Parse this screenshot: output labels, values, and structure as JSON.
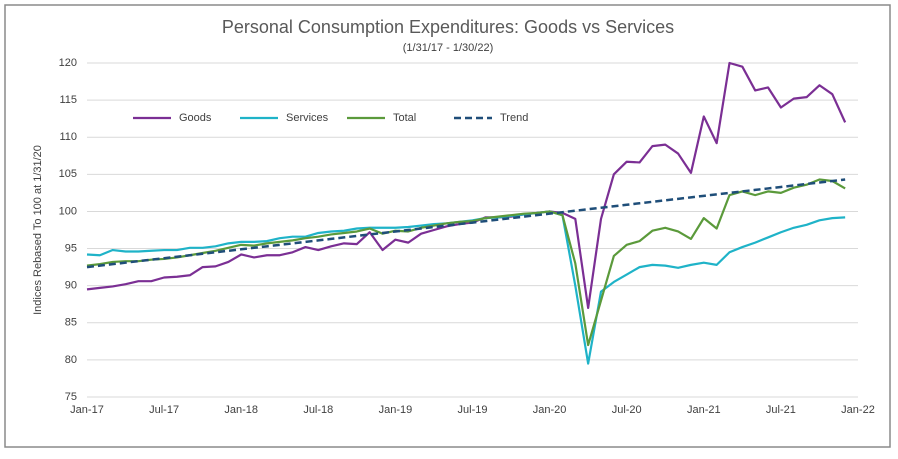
{
  "chart_data": {
    "type": "line",
    "title": "Personal Consumption Expenditures:  Goods vs Services",
    "subtitle": "(1/31/17 - 1/30/22)",
    "y_label": "Indices Rebased To 100 at 1/31/20",
    "categories": [
      "Jan-17",
      null,
      null,
      null,
      null,
      null,
      "Jul-17",
      null,
      null,
      null,
      null,
      null,
      "Jan-18",
      null,
      null,
      null,
      null,
      null,
      "Jul-18",
      null,
      null,
      null,
      null,
      null,
      "Jan-19",
      null,
      null,
      null,
      null,
      null,
      "Jul-19",
      null,
      null,
      null,
      null,
      null,
      "Jan-20",
      null,
      null,
      null,
      null,
      null,
      "Jul-20",
      null,
      null,
      null,
      null,
      null,
      "Jan-21",
      null,
      null,
      null,
      null,
      null,
      "Jul-21",
      null,
      null,
      null,
      null,
      null,
      "Jan-22"
    ],
    "series": [
      {
        "name": "Goods",
        "color": "#7b2f94",
        "values": [
          89.5,
          89.7,
          89.9,
          90.2,
          90.6,
          90.6,
          91.1,
          91.2,
          91.4,
          92.5,
          92.6,
          93.2,
          94.2,
          93.8,
          94.1,
          94.1,
          94.5,
          95.2,
          94.8,
          95.3,
          95.7,
          95.6,
          97.2,
          94.8,
          96.2,
          95.8,
          97.0,
          97.5,
          98.0,
          98.3,
          98.5,
          99.2,
          99.2,
          99.3,
          99.6,
          99.8,
          100,
          99.8,
          99.0,
          87,
          99,
          105,
          106.7,
          106.6,
          108.8,
          109,
          107.8,
          105.2,
          112.8,
          109.2,
          120,
          119.5,
          116.3,
          116.7,
          114,
          115.2,
          115.4,
          117,
          115.8,
          112,
          null
        ]
      },
      {
        "name": "Services",
        "color": "#1fb3c8",
        "values": [
          94.2,
          94.1,
          94.8,
          94.6,
          94.6,
          94.7,
          94.8,
          94.8,
          95.1,
          95.1,
          95.3,
          95.7,
          95.9,
          95.9,
          96.0,
          96.4,
          96.6,
          96.6,
          97.1,
          97.3,
          97.4,
          97.7,
          97.8,
          97.8,
          97.8,
          97.9,
          98.1,
          98.3,
          98.4,
          98.6,
          98.8,
          99.1,
          99.2,
          99.4,
          99.6,
          99.8,
          100,
          99.5,
          90,
          79.5,
          89.2,
          90.5,
          91.5,
          92.5,
          92.8,
          92.7,
          92.4,
          92.8,
          93.1,
          92.8,
          94.5,
          95.2,
          95.8,
          96.5,
          97.2,
          97.8,
          98.2,
          98.8,
          99.1,
          99.2,
          null
        ]
      },
      {
        "name": "Total",
        "color": "#5b9a3b",
        "values": [
          92.7,
          92.9,
          93.2,
          93.3,
          93.3,
          93.5,
          93.6,
          93.8,
          94.1,
          94.4,
          94.7,
          95.1,
          95.5,
          95.4,
          95.7,
          95.9,
          96.1,
          96.4,
          96.6,
          96.9,
          97.1,
          97.3,
          97.7,
          97.0,
          97.4,
          97.3,
          97.8,
          98.1,
          98.4,
          98.6,
          98.7,
          99.1,
          99.3,
          99.5,
          99.7,
          99.8,
          100,
          99.5,
          93,
          82,
          88,
          94,
          95.5,
          96,
          97.4,
          97.8,
          97.3,
          96.3,
          99.1,
          97.7,
          102.2,
          102.7,
          102.2,
          102.7,
          102.5,
          103.2,
          103.6,
          104.3,
          104.1,
          103.1,
          null
        ]
      },
      {
        "name": "Trend",
        "color": "#1f4e79",
        "dash": true,
        "values": [
          92.5,
          92.7,
          92.9,
          93.1,
          93.3,
          93.5,
          93.7,
          93.9,
          94.1,
          94.3,
          94.5,
          94.7,
          94.9,
          95.1,
          95.3,
          95.5,
          95.7,
          95.9,
          96.1,
          96.3,
          96.5,
          96.7,
          96.9,
          97.1,
          97.3,
          97.5,
          97.7,
          97.9,
          98.1,
          98.3,
          98.5,
          98.7,
          98.9,
          99.1,
          99.3,
          99.5,
          99.7,
          99.9,
          100.1,
          100.3,
          100.5,
          100.7,
          100.9,
          101.1,
          101.3,
          101.5,
          101.7,
          101.9,
          102.1,
          102.3,
          102.5,
          102.7,
          102.9,
          103.1,
          103.3,
          103.5,
          103.7,
          103.9,
          104.1,
          104.3,
          null
        ]
      }
    ],
    "ylim": [
      75,
      120
    ],
    "yticks": [
      75,
      80,
      85,
      90,
      95,
      100,
      105,
      110,
      115,
      120
    ],
    "grid": true,
    "legend": "upper left"
  }
}
